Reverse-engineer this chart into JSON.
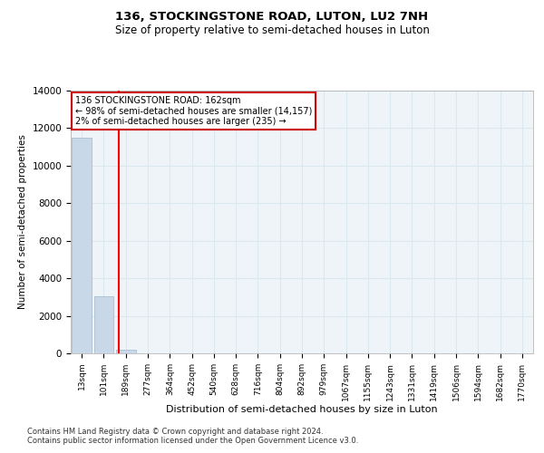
{
  "title1": "136, STOCKINGSTONE ROAD, LUTON, LU2 7NH",
  "title2": "Size of property relative to semi-detached houses in Luton",
  "xlabel": "Distribution of semi-detached houses by size in Luton",
  "ylabel": "Number of semi-detached properties",
  "categories": [
    "13sqm",
    "101sqm",
    "189sqm",
    "277sqm",
    "364sqm",
    "452sqm",
    "540sqm",
    "628sqm",
    "716sqm",
    "804sqm",
    "892sqm",
    "979sqm",
    "1067sqm",
    "1155sqm",
    "1243sqm",
    "1331sqm",
    "1419sqm",
    "1506sqm",
    "1594sqm",
    "1682sqm",
    "1770sqm"
  ],
  "values": [
    11500,
    3050,
    170,
    0,
    0,
    0,
    0,
    0,
    0,
    0,
    0,
    0,
    0,
    0,
    0,
    0,
    0,
    0,
    0,
    0,
    0
  ],
  "bar_color": "#c8d8e8",
  "bar_edge_color": "#a0b8cc",
  "property_sqm": 162,
  "annotation_text_line1": "136 STOCKINGSTONE ROAD: 162sqm",
  "annotation_text_line2": "← 98% of semi-detached houses are smaller (14,157)",
  "annotation_text_line3": "2% of semi-detached houses are larger (235) →",
  "annotation_box_color": "#cc0000",
  "ylim_max": 14000,
  "footnote1": "Contains HM Land Registry data © Crown copyright and database right 2024.",
  "footnote2": "Contains public sector information licensed under the Open Government Licence v3.0.",
  "grid_color": "#dce8f0",
  "bg_color": "#eef4f8"
}
